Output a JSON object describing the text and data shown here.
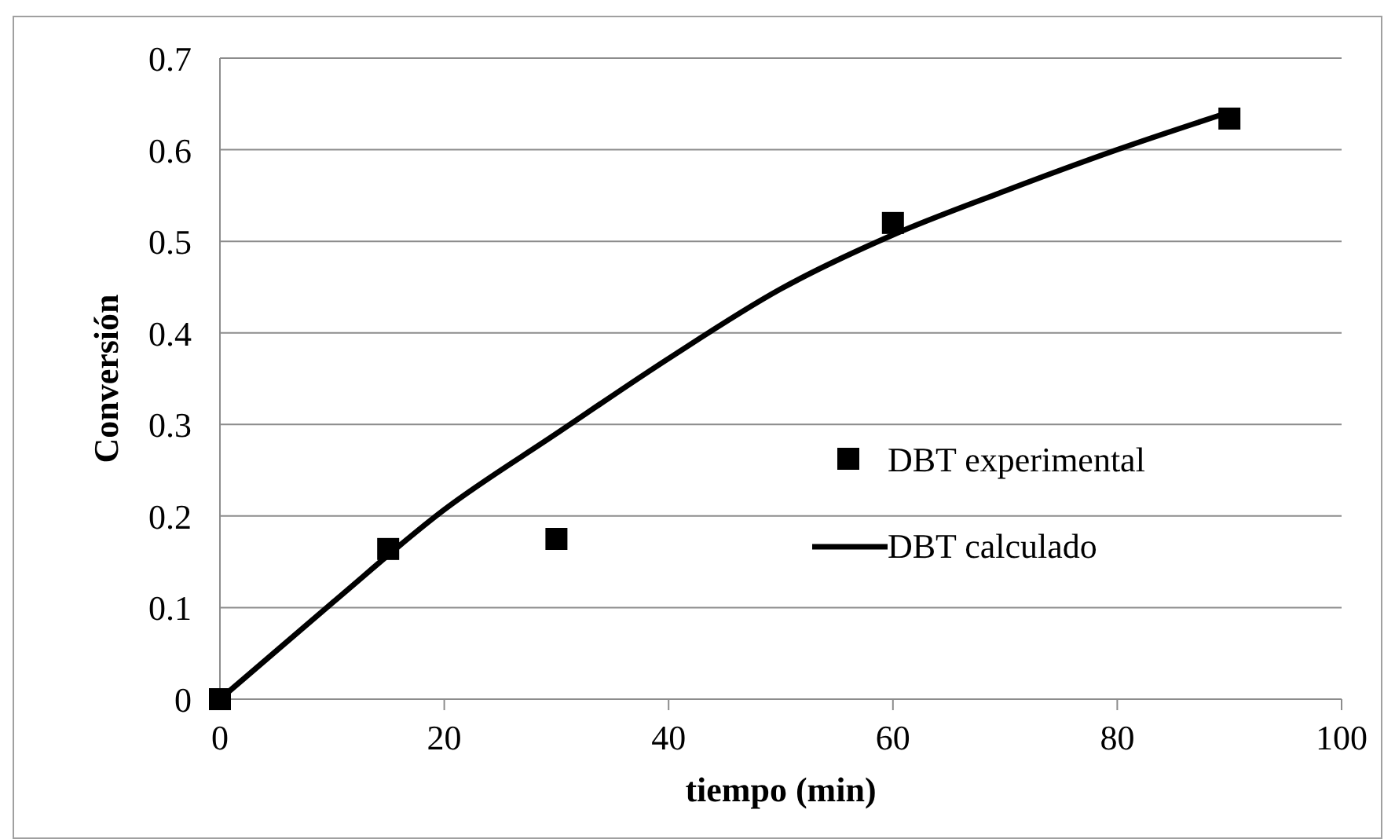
{
  "chart_data": {
    "type": "scatter",
    "xlabel": "tiempo (min)",
    "ylabel": "Conversión",
    "xlim": [
      0,
      100
    ],
    "xticks": [
      0,
      20,
      40,
      60,
      80,
      100
    ],
    "ylim": [
      0,
      0.7
    ],
    "yticks": [
      0,
      0.1,
      0.2,
      0.3,
      0.4,
      0.5,
      0.6,
      0.7
    ],
    "grid": "y",
    "legend": "right",
    "series": [
      {
        "name": "DBT experimental",
        "type": "scatter",
        "marker": "square",
        "color": "#000000",
        "x": [
          0,
          15,
          30,
          60,
          90
        ],
        "values": [
          0,
          0.164,
          0.175,
          0.52,
          0.634
        ]
      },
      {
        "name": "DBT calculado",
        "type": "line",
        "marker": "none",
        "line_style": "solid",
        "color": "#000000",
        "x": [
          0,
          10,
          20,
          30,
          40,
          50,
          60,
          70,
          80,
          90
        ],
        "values": [
          0,
          0.105,
          0.207,
          0.29,
          0.372,
          0.448,
          0.507,
          0.555,
          0.6,
          0.641
        ]
      }
    ]
  }
}
